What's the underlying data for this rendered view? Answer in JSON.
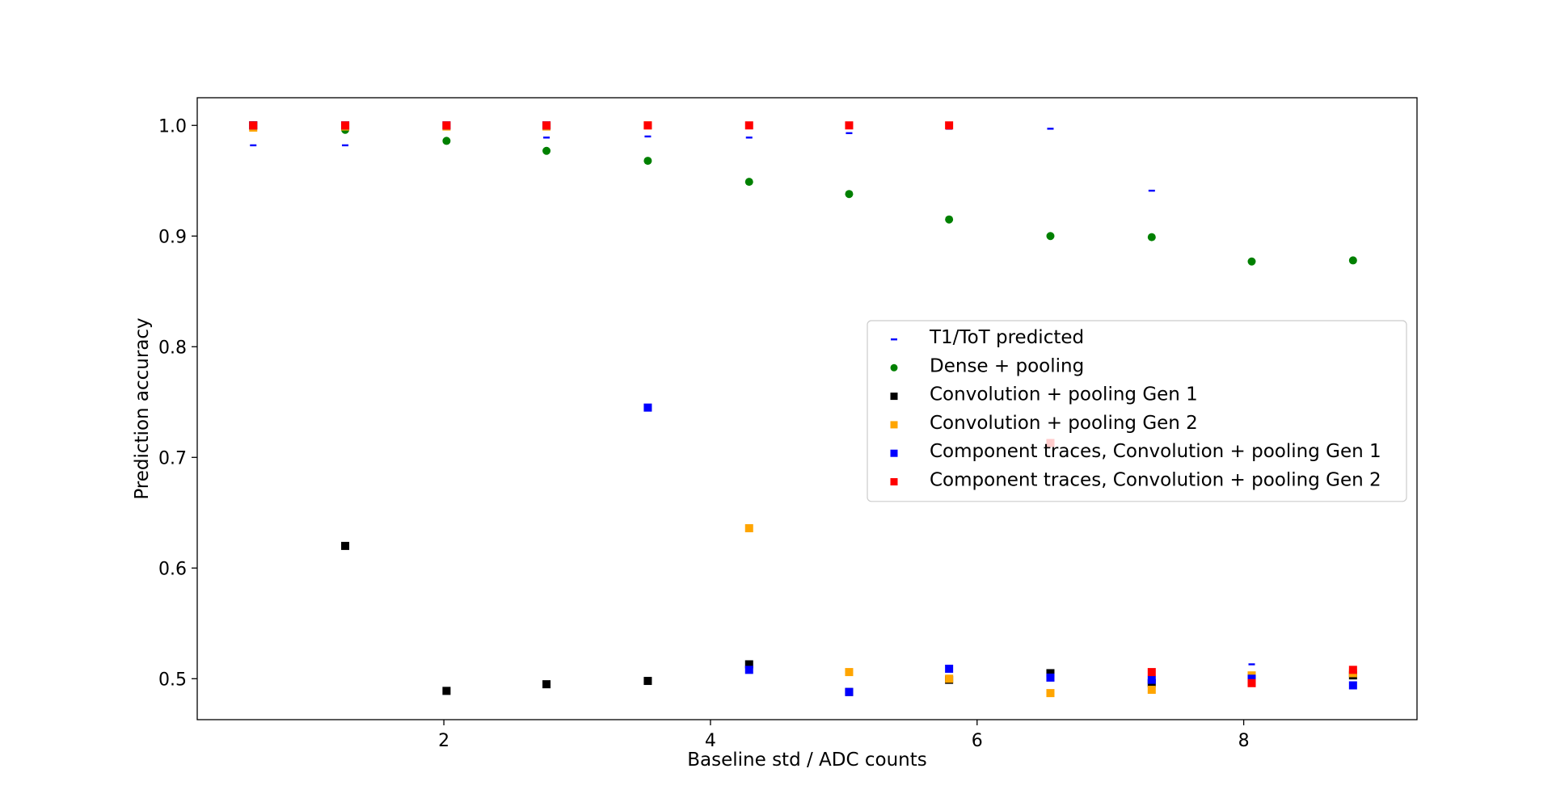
{
  "chart_data": {
    "type": "scatter",
    "title": "",
    "xlabel": "Baseline std / ADC counts",
    "ylabel": "Prediction accuracy",
    "xlim": [
      0.15,
      9.3
    ],
    "ylim": [
      0.463,
      1.025
    ],
    "xticks": [
      2,
      4,
      6,
      8
    ],
    "yticks": [
      0.5,
      0.6,
      0.7,
      0.8,
      0.9,
      1.0
    ],
    "xtick_labels": [
      "2",
      "4",
      "6",
      "8"
    ],
    "ytick_labels": [
      "0.5",
      "0.6",
      "0.7",
      "0.8",
      "0.9",
      "1.0"
    ],
    "grid": false,
    "legend_position": "center-right",
    "x": [
      0.57,
      1.26,
      2.02,
      2.77,
      3.53,
      4.29,
      5.04,
      5.79,
      6.55,
      7.31,
      8.06,
      8.82
    ],
    "series": [
      {
        "name": "T1/ToT predicted",
        "marker": "dash",
        "color": "#0000ff",
        "values": [
          0.982,
          0.982,
          1.0,
          0.989,
          0.99,
          0.989,
          0.993,
          0.997,
          0.997,
          0.941,
          0.513,
          null
        ]
      },
      {
        "name": "Dense + pooling",
        "marker": "circle",
        "color": "#008000",
        "values": [
          1.0,
          0.996,
          0.986,
          0.977,
          0.968,
          0.949,
          0.938,
          0.915,
          0.9,
          0.899,
          0.877,
          0.878
        ]
      },
      {
        "name": "Convolution + pooling Gen 1",
        "marker": "square",
        "color": "#000000",
        "values": [
          1.0,
          0.62,
          0.489,
          0.495,
          0.498,
          0.513,
          0.488,
          0.499,
          0.505,
          0.496,
          0.5,
          0.503
        ]
      },
      {
        "name": "Convolution + pooling Gen 2",
        "marker": "square",
        "color": "#ffa500",
        "values": [
          0.998,
          0.999,
          0.999,
          0.999,
          1.0,
          0.636,
          0.506,
          0.5,
          0.487,
          0.49,
          0.503,
          0.505
        ]
      },
      {
        "name": "Component traces, Convolution + pooling Gen 1",
        "marker": "square",
        "color": "#0000ff",
        "values": [
          1.0,
          1.0,
          1.0,
          1.0,
          0.745,
          0.508,
          0.488,
          0.509,
          0.501,
          0.499,
          0.5,
          0.494
        ]
      },
      {
        "name": "Component traces, Convolution + pooling Gen 2",
        "marker": "square",
        "color": "#ff0000",
        "values": [
          1.0,
          1.0,
          1.0,
          1.0,
          1.0,
          1.0,
          1.0,
          1.0,
          0.713,
          0.506,
          0.496,
          0.508
        ]
      }
    ]
  }
}
